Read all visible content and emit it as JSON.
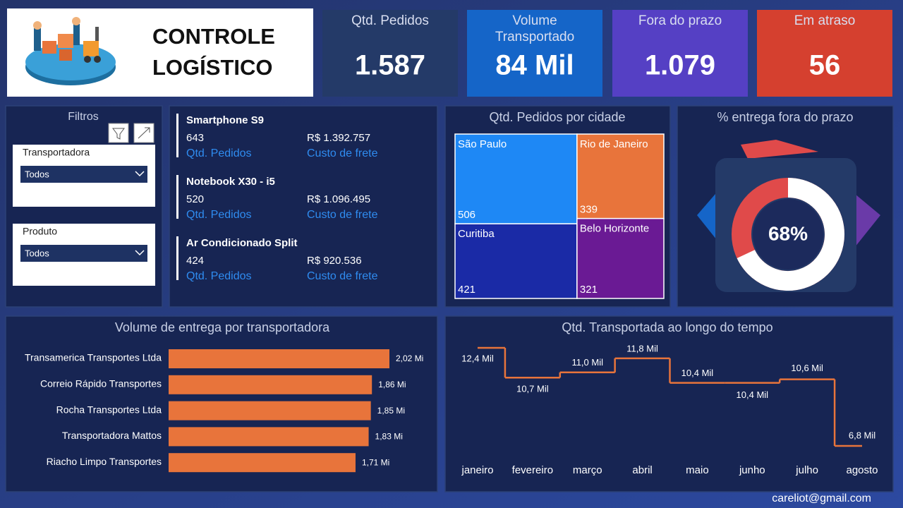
{
  "header": {
    "title_line1": "CONTROLE",
    "title_line2": "LOGÍSTICO"
  },
  "kpis": [
    {
      "label_lines": [
        "Qtd. Pedidos"
      ],
      "value": "1.587",
      "color": "#243a68"
    },
    {
      "label_lines": [
        "Volume",
        "Transportado"
      ],
      "value": "84 Mil",
      "color": "#1565c8"
    },
    {
      "label_lines": [
        "Fora do prazo"
      ],
      "value": "1.079",
      "color": "#5540c4"
    },
    {
      "label_lines": [
        "Em atraso"
      ],
      "value": "56",
      "color": "#d5402f"
    }
  ],
  "filters": {
    "title": "Filtros",
    "fields": [
      {
        "label": "Transportadora",
        "selected": "Todos"
      },
      {
        "label": "Produto",
        "selected": "Todos"
      }
    ]
  },
  "products": [
    {
      "name": "Smartphone S9",
      "qty": "643",
      "qty_label": "Qtd. Pedidos",
      "cost": "R$ 1.392.757",
      "cost_label": "Custo de frete"
    },
    {
      "name": "Notebook X30 - i5",
      "qty": "520",
      "qty_label": "Qtd. Pedidos",
      "cost": "R$ 1.096.495",
      "cost_label": "Custo de frete"
    },
    {
      "name": "Ar Condicionado Split",
      "qty": "424",
      "qty_label": "Qtd. Pedidos",
      "cost": "R$ 920.536",
      "cost_label": "Custo de frete"
    }
  ],
  "footer": {
    "email": "careliot@gmail.com"
  },
  "chart_data": [
    {
      "type": "treemap",
      "title": "Qtd. Pedidos por cidade",
      "categories": [
        "São Paulo",
        "Rio de Janeiro",
        "Curitiba",
        "Belo Horizonte"
      ],
      "values": [
        506,
        339,
        421,
        321
      ],
      "colors": [
        "#1e88f5",
        "#e8743b",
        "#1a2aa6",
        "#6a1a94"
      ]
    },
    {
      "type": "donut",
      "title": "% entrega fora do prazo",
      "values": [
        68
      ],
      "value_labels": [
        "68%"
      ],
      "colors": [
        "#ffffff",
        "#e04a4a"
      ]
    },
    {
      "type": "bar",
      "orientation": "horizontal",
      "title": "Volume de entrega por transportadora",
      "categories": [
        "Transamerica Transportes Ltda",
        "Correio Rápido Transportes",
        "Rocha Transportes Ltda",
        "Transportadora Mattos",
        "Riacho Limpo Transportes"
      ],
      "values": [
        2.02,
        1.86,
        1.85,
        1.83,
        1.71
      ],
      "value_labels": [
        "2,02 Mi",
        "1,86 Mi",
        "1,85 Mi",
        "1,83 Mi",
        "1,71 Mi"
      ],
      "color": "#e8743b"
    },
    {
      "type": "line",
      "step": true,
      "title": "Qtd. Transportada ao longo do tempo",
      "categories": [
        "janeiro",
        "fevereiro",
        "março",
        "abril",
        "maio",
        "junho",
        "julho",
        "agosto"
      ],
      "values": [
        12.4,
        10.7,
        11.0,
        11.8,
        10.4,
        10.4,
        10.6,
        6.8
      ],
      "value_labels": [
        "12,4 Mil",
        "10,7 Mil",
        "11,0 Mil",
        "11,8 Mil",
        "10,4 Mil",
        "10,4 Mil",
        "10,6 Mil",
        "6,8 Mil"
      ],
      "color": "#e8743b"
    }
  ]
}
